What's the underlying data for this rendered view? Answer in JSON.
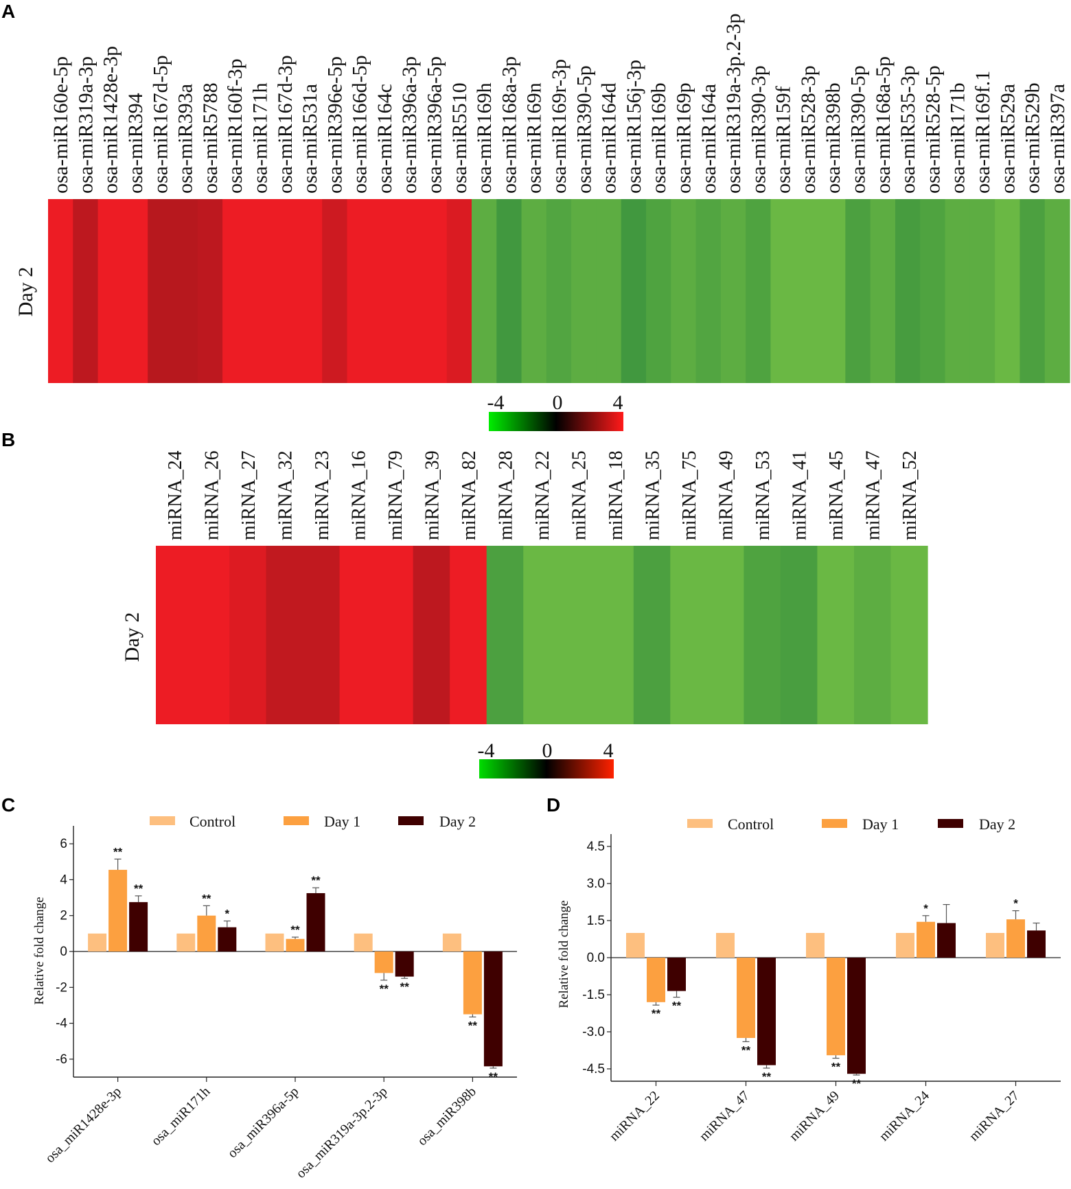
{
  "panels": {
    "a": "A",
    "b": "B",
    "c": "C",
    "d": "D"
  },
  "colors": {
    "red": "#ed1c24",
    "black": "#000000",
    "green": "#00ee00",
    "control": "#fdbf7f",
    "day1": "#fca040",
    "day2": "#3f0000"
  },
  "chart_data": [
    {
      "panel": "A",
      "type": "heatmap",
      "row_label": "Day 2",
      "columns": [
        "osa-miR160e-5p",
        "osa-miR319a-3p",
        "osa-miR1428e-3p",
        "osa-miR394",
        "osa-miR167d-5p",
        "osa-miR393a",
        "osa-miR5788",
        "osa-miR160f-3p",
        "osa-miR171h",
        "osa-miR167d-3p",
        "osa-miR531a",
        "osa-miR396e-5p",
        "osa-miR166d-5p",
        "osa-miR164c",
        "osa-miR396a-3p",
        "osa-miR396a-5p",
        "osa-miR5510",
        "osa-miR169h",
        "osa-miR168a-3p",
        "osa-miR169n",
        "osa-miR169r-3p",
        "osa-miR390-5p",
        "osa-miR164d",
        "osa-miR156j-3p",
        "osa-miR169b",
        "osa-miR169p",
        "osa-miR164a",
        "osa-miR319a-3p.2-3p",
        "osa-miR390-3p",
        "osa-miR159f",
        "osa-miR528-3p",
        "osa-miR398b",
        "osa-miR390-5p",
        "osa-miR168a-5p",
        "osa-miR535-3p",
        "osa-miR528-5p",
        "osa-miR171b",
        "osa-miR169f.1",
        "osa-miR529a",
        "osa-miR529b",
        "osa-miR397a"
      ],
      "values": [
        4,
        2.5,
        4,
        4,
        2.3,
        2.3,
        2.5,
        4,
        4,
        4,
        4,
        3,
        4,
        4,
        4,
        4,
        3.4,
        -3,
        -2,
        -3,
        -2.6,
        -3,
        -3,
        -2,
        -2.5,
        -3,
        -2.6,
        -3,
        -2.5,
        -3.5,
        -3.5,
        -3.5,
        -2.4,
        -3,
        -2.2,
        -2.5,
        -3,
        -3,
        -3.5,
        -2.4,
        -3
      ],
      "scale": {
        "min": -4,
        "max": 4,
        "ticks": [
          "-4",
          "0",
          "4"
        ]
      }
    },
    {
      "panel": "B",
      "type": "heatmap",
      "row_label": "Day 2",
      "columns": [
        "miRNA_24",
        "miRNA_26",
        "miRNA_27",
        "miRNA_32",
        "miRNA_23",
        "miRNA_16",
        "miRNA_79",
        "miRNA_39",
        "miRNA_82",
        "miRNA_28",
        "miRNA_22",
        "miRNA_25",
        "miRNA_18",
        "miRNA_35",
        "miRNA_75",
        "miRNA_49",
        "miRNA_53",
        "miRNA_41",
        "miRNA_45",
        "miRNA_47",
        "miRNA_52"
      ],
      "values": [
        4,
        4,
        3.5,
        2.6,
        2.6,
        4,
        4,
        2.5,
        4,
        -2.4,
        -3.5,
        -3.5,
        -3.5,
        -2.4,
        -3.5,
        -3.5,
        -2.5,
        -2.3,
        -3.5,
        -3,
        -3.5
      ],
      "scale": {
        "min": -4,
        "max": 4,
        "ticks": [
          "-4",
          "0",
          "4"
        ]
      }
    },
    {
      "panel": "C",
      "type": "bar",
      "ylabel": "Relative fold change",
      "legend": [
        "Control",
        "Day 1",
        "Day 2"
      ],
      "categories": [
        "osa_miR1428e-3p",
        "osa_miR171h",
        "osa_miR396a-5p",
        "osa_miR319a-3p.2-3p",
        "osa_miR398b"
      ],
      "ylim": [
        -7,
        7
      ],
      "yticks": [
        6,
        4,
        2,
        0,
        -2,
        -4,
        -6
      ],
      "series": [
        {
          "name": "Control",
          "values": [
            1,
            1,
            1,
            1,
            1
          ],
          "errors": [
            0,
            0,
            0,
            0,
            0
          ],
          "sig": [
            "",
            "",
            "",
            "",
            ""
          ]
        },
        {
          "name": "Day 1",
          "values": [
            4.55,
            2.0,
            0.7,
            -1.2,
            -3.5
          ],
          "errors": [
            0.6,
            0.55,
            0.1,
            0.4,
            0.15
          ],
          "sig": [
            "**",
            "**",
            "**",
            "**",
            "**"
          ]
        },
        {
          "name": "Day 2",
          "values": [
            2.75,
            1.35,
            3.25,
            -1.4,
            -6.4
          ],
          "errors": [
            0.35,
            0.35,
            0.3,
            0.1,
            0.1
          ],
          "sig": [
            "**",
            "*",
            "**",
            "**",
            "**"
          ]
        }
      ]
    },
    {
      "panel": "D",
      "type": "bar",
      "ylabel": "Relative fold change",
      "legend": [
        "Control",
        "Day 1",
        "Day 2"
      ],
      "categories": [
        "miRNA_22",
        "miRNA_47",
        "miRNA_49",
        "miRNA_24",
        "miRNA_27"
      ],
      "ylim": [
        -5,
        5
      ],
      "yticks": [
        "4.5",
        "3.0",
        "1.5",
        "0.0",
        "-1.5",
        "-3.0",
        "-4.5"
      ],
      "series": [
        {
          "name": "Control",
          "values": [
            1,
            1,
            1,
            1,
            1
          ],
          "errors": [
            0,
            0,
            0,
            0,
            0
          ],
          "sig": [
            "",
            "",
            "",
            "",
            ""
          ]
        },
        {
          "name": "Day 1",
          "values": [
            -1.8,
            -3.25,
            -3.95,
            1.45,
            1.55
          ],
          "errors": [
            0.12,
            0.15,
            0.12,
            0.25,
            0.35
          ],
          "sig": [
            "**",
            "**",
            "**",
            "*",
            "*"
          ]
        },
        {
          "name": "Day 2",
          "values": [
            -1.35,
            -4.35,
            -4.7,
            1.4,
            1.1
          ],
          "errors": [
            0.25,
            0.12,
            0.05,
            0.75,
            0.3
          ],
          "sig": [
            "**",
            "**",
            "**",
            "",
            ""
          ]
        }
      ]
    }
  ]
}
